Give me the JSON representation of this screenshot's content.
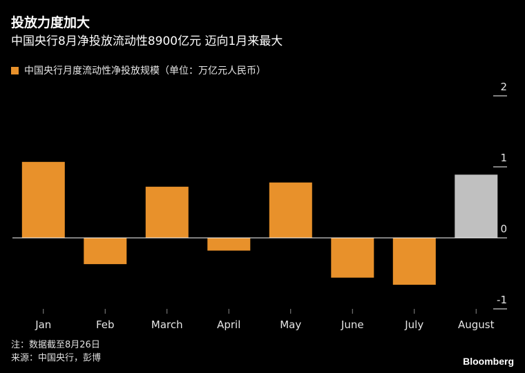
{
  "header": {
    "title": "投放力度加大",
    "subtitle": "中国央行8月净投放流动性8900亿元 迈向1月来最大"
  },
  "legend": {
    "label": "中国央行月度流动性净投放规模（单位：万亿元人民币）"
  },
  "footer": {
    "note": "注：数据截至8月26日",
    "source": "来源：中国央行，彭博",
    "brand": "Bloomberg"
  },
  "colors": {
    "bar": "#e8912b",
    "highlight": "#c0c0c0",
    "axis": "#ffffff",
    "tick_label": "#e6e6e6"
  },
  "chart_data": {
    "type": "bar",
    "categories": [
      "Jan",
      "Feb",
      "March",
      "April",
      "May",
      "June",
      "July",
      "August"
    ],
    "values": [
      1.07,
      -0.37,
      0.72,
      -0.18,
      0.78,
      -0.56,
      -0.66,
      0.89
    ],
    "highlight_index": 7,
    "ylim": [
      -1,
      2
    ],
    "yticks": [
      2,
      1,
      0,
      -1
    ],
    "ytick_labels": [
      "2",
      "1",
      "0",
      "-1"
    ],
    "y_axis_position": "right",
    "legend_position": "top-left",
    "grid": false
  }
}
